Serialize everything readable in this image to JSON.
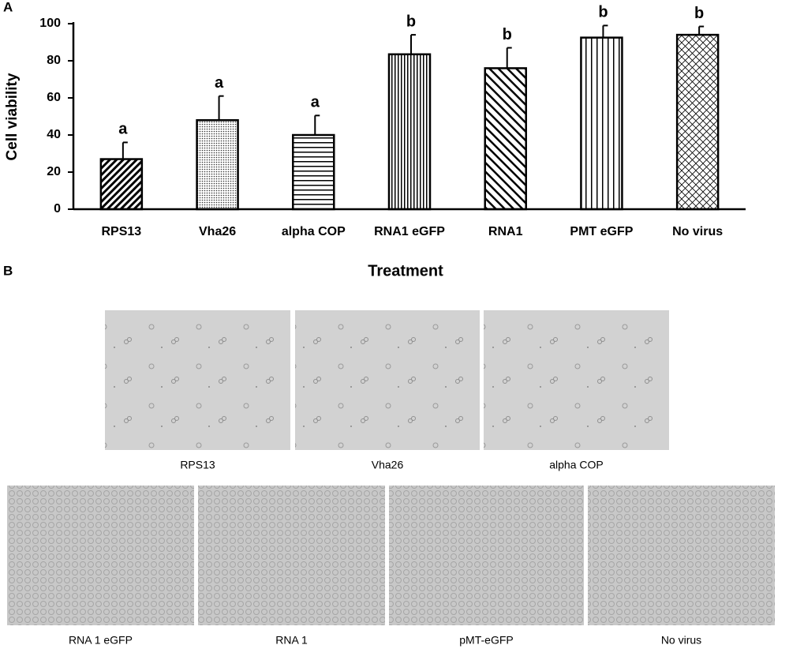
{
  "panel_labels": [
    "A",
    "B"
  ],
  "chart_data": {
    "type": "bar",
    "y_label": "Cell viability",
    "x_label": "Treatment",
    "categories": [
      "RPS13",
      "Vha26",
      "alpha COP",
      "RNA1 eGFP",
      "RNA1",
      "PMT eGFP",
      "No virus"
    ],
    "values": [
      27,
      48,
      40,
      83.5,
      76,
      92.5,
      94
    ],
    "errors": [
      9,
      13,
      10.5,
      10.5,
      11,
      6.5,
      4.5
    ],
    "annotations": [
      "a",
      "a",
      "a",
      "b",
      "b",
      "b",
      "b"
    ],
    "patterns": [
      "diagonal-up",
      "dots",
      "horizontal",
      "vertical",
      "diagonal-down",
      "vertical-wide",
      "crosshatch"
    ],
    "color": "#000000",
    "ylim": [
      0,
      100
    ],
    "yticks": [
      0,
      20,
      40,
      60,
      80,
      100
    ],
    "grid": false
  },
  "micrographs": [
    {
      "label": "RPS13"
    },
    {
      "label": "Vha26"
    },
    {
      "label": "alpha COP"
    },
    {
      "label": "RNA 1 eGFP"
    },
    {
      "label": "RNA 1"
    },
    {
      "label": "pMT-eGFP"
    },
    {
      "label": "No virus"
    }
  ]
}
